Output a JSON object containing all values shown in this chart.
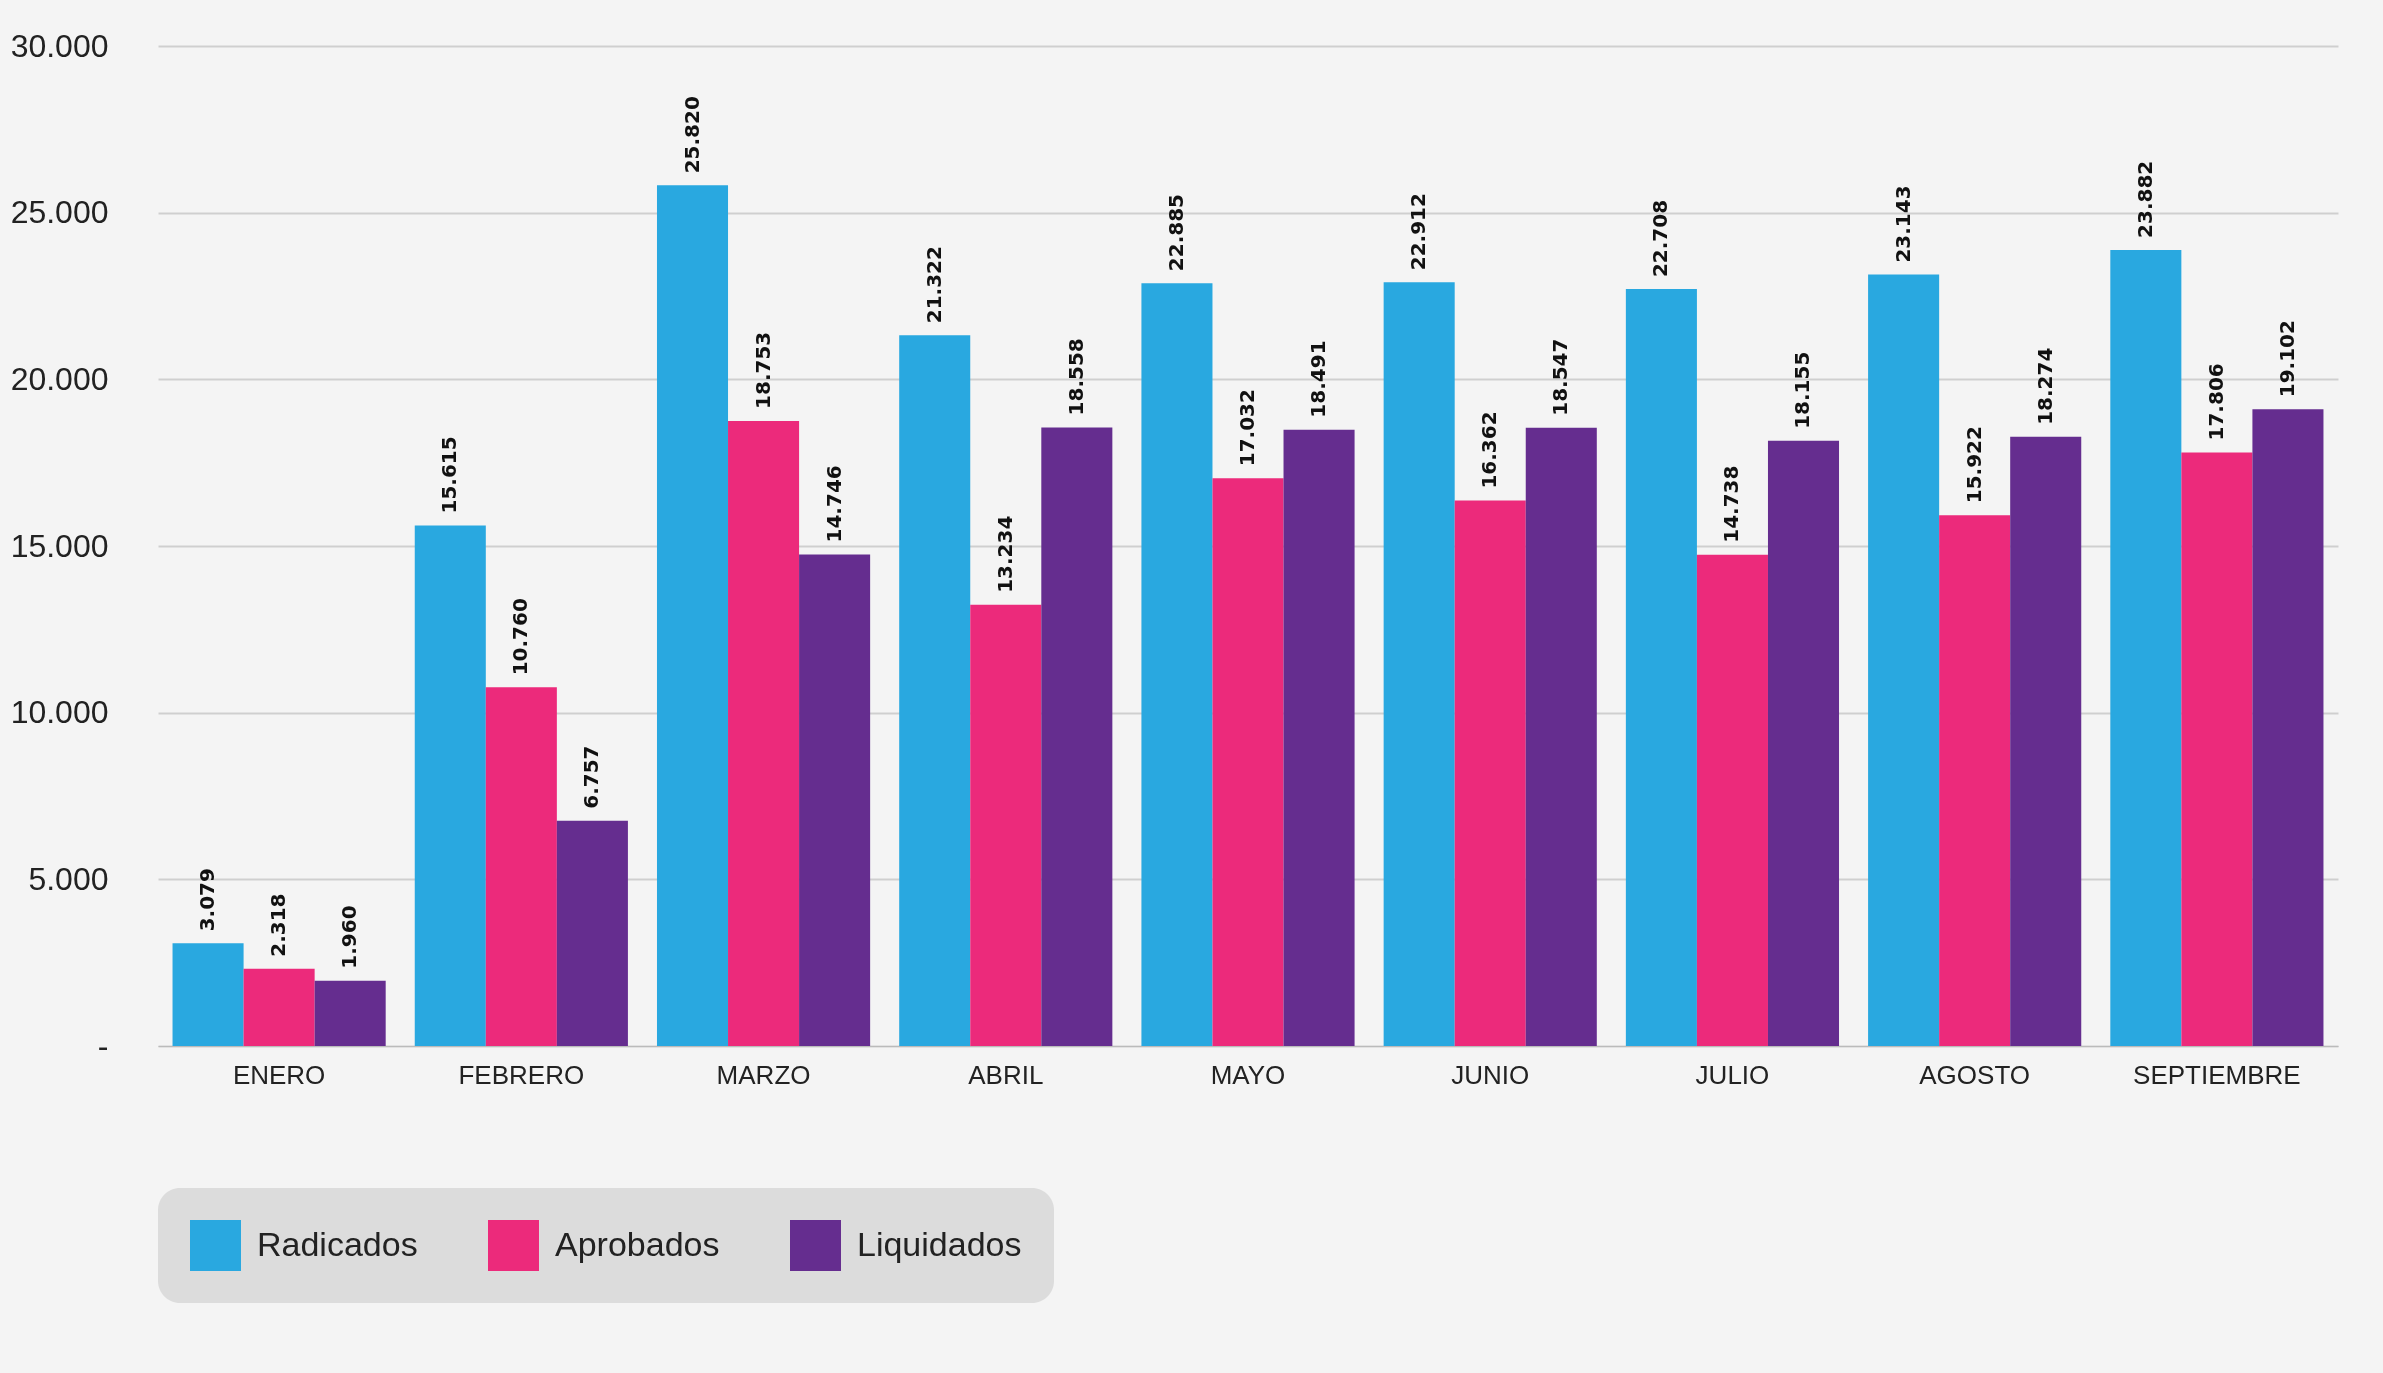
{
  "chart_data": {
    "type": "bar",
    "categories": [
      "ENERO",
      "FEBRERO",
      "MARZO",
      "ABRIL",
      "MAYO",
      "JUNIO",
      "JULIO",
      "AGOSTO",
      "SEPTIEMBRE"
    ],
    "series": [
      {
        "name": "Radicados",
        "color": "#29a8e0",
        "values": [
          3079,
          15615,
          25820,
          21322,
          22885,
          22912,
          22708,
          23143,
          23882
        ],
        "value_labels": [
          "3.079",
          "15.615",
          "25.820",
          "21.322",
          "22.885",
          "22.912",
          "22.708",
          "23.143",
          "23.882"
        ]
      },
      {
        "name": "Aprobados",
        "color": "#ec2a7b",
        "values": [
          2318,
          10760,
          18753,
          13234,
          17032,
          16362,
          14738,
          15922,
          17806
        ],
        "value_labels": [
          "2.318",
          "10.760",
          "18.753",
          "13.234",
          "17.032",
          "16.362",
          "14.738",
          "15.922",
          "17.806"
        ]
      },
      {
        "name": "Liquidados",
        "color": "#652d8f",
        "values": [
          1960,
          6757,
          14746,
          18558,
          18491,
          18547,
          18155,
          18274,
          19102
        ],
        "value_labels": [
          "1.960",
          "6.757",
          "14.746",
          "18.558",
          "18.491",
          "18.547",
          "18.155",
          "18.274",
          "19.102"
        ]
      }
    ],
    "ylim": [
      0,
      30000
    ],
    "yticks": [
      {
        "value": 0,
        "label": "-"
      },
      {
        "value": 5000,
        "label": "5.000"
      },
      {
        "value": 10000,
        "label": "10.000"
      },
      {
        "value": 15000,
        "label": "15.000"
      },
      {
        "value": 20000,
        "label": "20.000"
      },
      {
        "value": 25000,
        "label": "25.000"
      },
      {
        "value": 30000,
        "label": "30.000"
      }
    ],
    "grid": "y",
    "legend": "bottom"
  }
}
